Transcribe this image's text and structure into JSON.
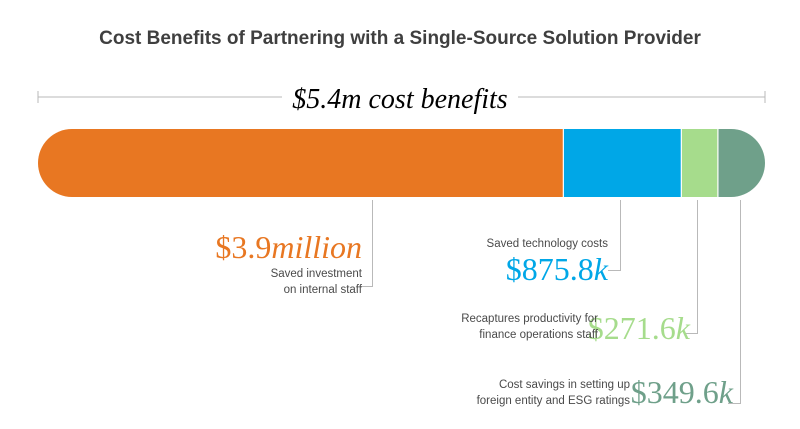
{
  "title": "Cost Benefits of Partnering with a Single-Source Solution Provider",
  "total_label": "$5.4m cost benefits",
  "colors": {
    "staff": "#e87722",
    "technology": "#00a7e7",
    "productivity": "#a6dc8c",
    "foreign": "#6fa08a",
    "rule": "#b9b9b9",
    "title": "#3f3f3f"
  },
  "chart_data": {
    "type": "bar",
    "orientation": "horizontal-stacked",
    "title": "Cost Benefits of Partnering with a Single-Source Solution Provider",
    "total": "$5.4m cost benefits",
    "series": [
      {
        "value": 3.9,
        "display": {
          "amount": "$3.9",
          "unit": "million"
        },
        "label_lines": [
          "Saved investment",
          "on internal staff"
        ],
        "color": "#e87722"
      },
      {
        "value": 0.8758,
        "display": {
          "amount": "$875.8",
          "unit": "k"
        },
        "label_lines": [
          "Saved technology costs"
        ],
        "color": "#00a7e7"
      },
      {
        "value": 0.2716,
        "display": {
          "amount": "$271.6",
          "unit": "k"
        },
        "label_lines": [
          "Recaptures productivity for",
          "finance operations staff"
        ],
        "color": "#a6dc8c"
      },
      {
        "value": 0.3496,
        "display": {
          "amount": "$349.6",
          "unit": "k"
        },
        "label_lines": [
          "Cost savings in setting up",
          "foreign entity and ESG ratings"
        ],
        "color": "#6fa08a"
      }
    ]
  }
}
